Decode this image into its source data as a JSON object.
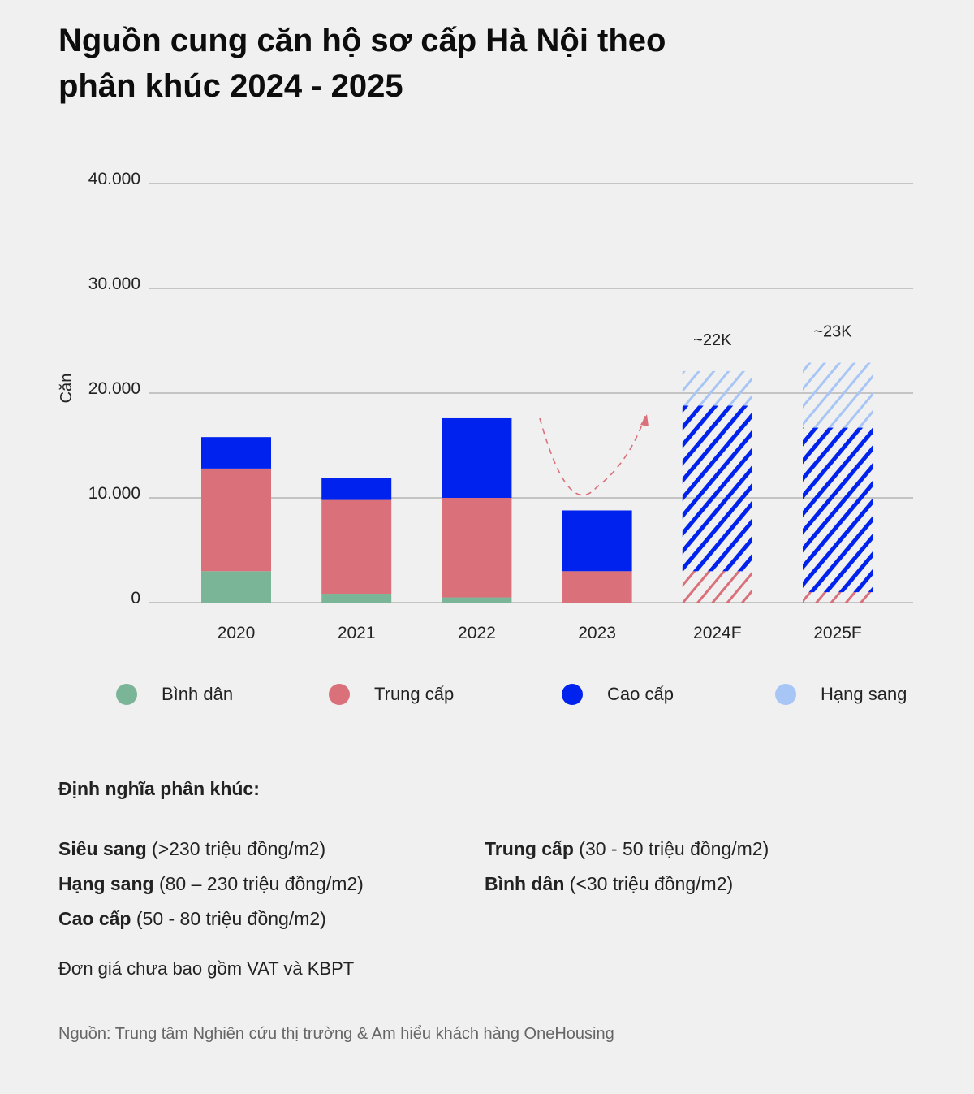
{
  "title": "Nguồn cung căn hộ sơ cấp Hà Nội theo phân khúc 2024 - 2025",
  "colors": {
    "binh_dan": "#7bb597",
    "trung_cap": "#d9707a",
    "cao_cap": "#0022ee",
    "hang_sang": "#a8c6f5"
  },
  "chart_data": {
    "type": "bar",
    "stacked": true,
    "ylabel": "Căn",
    "ylim": [
      0,
      40000
    ],
    "yticks": [
      0,
      10000,
      20000,
      30000,
      40000
    ],
    "ytick_labels": [
      "0",
      "10.000",
      "20.000",
      "30.000",
      "40.000"
    ],
    "grid": true,
    "categories": [
      "2020",
      "2021",
      "2022",
      "2023",
      "2024F",
      "2025F"
    ],
    "forecast": [
      false,
      false,
      false,
      false,
      true,
      true
    ],
    "series": [
      {
        "name": "Bình dân",
        "values": [
          3000,
          850,
          500,
          0,
          0,
          0
        ]
      },
      {
        "name": "Trung cấp",
        "values": [
          9800,
          8950,
          9500,
          3000,
          3000,
          1000
        ]
      },
      {
        "name": "Cao cấp",
        "values": [
          3000,
          2100,
          7600,
          5800,
          15800,
          15700
        ]
      },
      {
        "name": "Hạng sang",
        "values": [
          0,
          0,
          0,
          0,
          3300,
          6200
        ]
      }
    ],
    "total_labels": [
      "",
      "",
      "",
      "",
      "~22K",
      "~23K"
    ],
    "legend_position": "bottom"
  },
  "definitions": {
    "heading": "Định nghĩa phân khúc:",
    "items": [
      {
        "bold": "Siêu sang",
        "text": " (>230 triệu đồng/m2)"
      },
      {
        "bold": "Hạng sang",
        "text": " (80 – 230 triệu đồng/m2)"
      },
      {
        "bold": "Cao cấp",
        "text": " (50 - 80 triệu đồng/m2)"
      },
      {
        "bold": "Trung cấp",
        "text": " (30 - 50 triệu đồng/m2)"
      },
      {
        "bold": "Bình dân",
        "text": " (<30 triệu đồng/m2)"
      }
    ],
    "note": "Đơn giá chưa bao gồm VAT và KBPT"
  },
  "source": "Nguồn: Trung tâm Nghiên cứu thị trường & Am hiểu khách hàng OneHousing"
}
